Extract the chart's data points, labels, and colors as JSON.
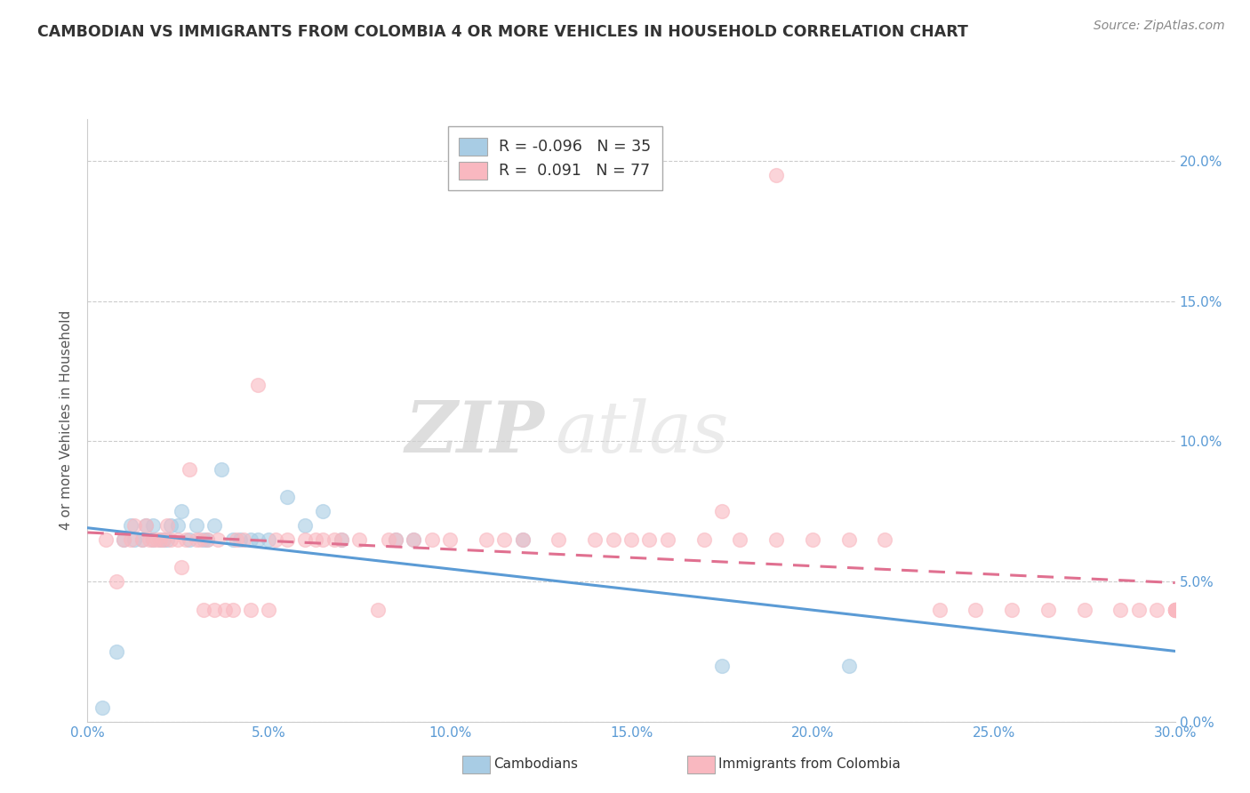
{
  "title": "CAMBODIAN VS IMMIGRANTS FROM COLOMBIA 4 OR MORE VEHICLES IN HOUSEHOLD CORRELATION CHART",
  "source": "Source: ZipAtlas.com",
  "ylabel": "4 or more Vehicles in Household",
  "legend_cambodian": "Cambodians",
  "legend_colombia": "Immigrants from Colombia",
  "r_cambodian": -0.096,
  "n_cambodian": 35,
  "r_colombia": 0.091,
  "n_colombia": 77,
  "xlim": [
    0.0,
    0.3
  ],
  "ylim": [
    0.0,
    0.215
  ],
  "xticks": [
    0.0,
    0.05,
    0.1,
    0.15,
    0.2,
    0.25,
    0.3
  ],
  "xtick_labels": [
    "0.0%",
    "5.0%",
    "10.0%",
    "15.0%",
    "20.0%",
    "25.0%",
    "30.0%"
  ],
  "yticks": [
    0.0,
    0.05,
    0.1,
    0.15,
    0.2
  ],
  "right_ytick_labels": [
    "0.0%",
    "5.0%",
    "10.0%",
    "15.0%",
    "20.0%"
  ],
  "color_cambodian": "#a8cce4",
  "color_colombia": "#f9b8c0",
  "trendline_color_cambodian": "#5b9bd5",
  "trendline_color_colombia": "#e07090",
  "watermark_zip": "ZIP",
  "watermark_atlas": "atlas",
  "cambodian_x": [
    0.004,
    0.008,
    0.01,
    0.012,
    0.013,
    0.015,
    0.016,
    0.018,
    0.018,
    0.02,
    0.021,
    0.022,
    0.023,
    0.025,
    0.026,
    0.028,
    0.03,
    0.032,
    0.033,
    0.035,
    0.037,
    0.04,
    0.042,
    0.045,
    0.047,
    0.05,
    0.055,
    0.06,
    0.065,
    0.07,
    0.085,
    0.09,
    0.12,
    0.175,
    0.21
  ],
  "cambodian_y": [
    0.005,
    0.025,
    0.065,
    0.07,
    0.065,
    0.065,
    0.07,
    0.065,
    0.07,
    0.065,
    0.065,
    0.065,
    0.07,
    0.07,
    0.075,
    0.065,
    0.07,
    0.065,
    0.065,
    0.07,
    0.09,
    0.065,
    0.065,
    0.065,
    0.065,
    0.065,
    0.08,
    0.07,
    0.075,
    0.065,
    0.065,
    0.065,
    0.065,
    0.02,
    0.02
  ],
  "colombia_x": [
    0.005,
    0.008,
    0.01,
    0.012,
    0.013,
    0.015,
    0.016,
    0.017,
    0.018,
    0.019,
    0.02,
    0.021,
    0.022,
    0.023,
    0.025,
    0.026,
    0.027,
    0.028,
    0.03,
    0.031,
    0.032,
    0.033,
    0.035,
    0.036,
    0.038,
    0.04,
    0.041,
    0.043,
    0.045,
    0.047,
    0.05,
    0.052,
    0.055,
    0.06,
    0.063,
    0.065,
    0.068,
    0.07,
    0.075,
    0.08,
    0.083,
    0.085,
    0.09,
    0.095,
    0.1,
    0.11,
    0.115,
    0.12,
    0.13,
    0.14,
    0.145,
    0.15,
    0.155,
    0.16,
    0.17,
    0.175,
    0.18,
    0.19,
    0.2,
    0.21,
    0.22,
    0.235,
    0.245,
    0.255,
    0.265,
    0.275,
    0.285,
    0.29,
    0.295,
    0.3,
    0.3,
    0.3,
    0.3,
    0.3,
    0.3,
    0.3,
    0.19
  ],
  "colombia_y": [
    0.065,
    0.05,
    0.065,
    0.065,
    0.07,
    0.065,
    0.07,
    0.065,
    0.065,
    0.065,
    0.065,
    0.065,
    0.07,
    0.065,
    0.065,
    0.055,
    0.065,
    0.09,
    0.065,
    0.065,
    0.04,
    0.065,
    0.04,
    0.065,
    0.04,
    0.04,
    0.065,
    0.065,
    0.04,
    0.12,
    0.04,
    0.065,
    0.065,
    0.065,
    0.065,
    0.065,
    0.065,
    0.065,
    0.065,
    0.04,
    0.065,
    0.065,
    0.065,
    0.065,
    0.065,
    0.065,
    0.065,
    0.065,
    0.065,
    0.065,
    0.065,
    0.065,
    0.065,
    0.065,
    0.065,
    0.075,
    0.065,
    0.065,
    0.065,
    0.065,
    0.065,
    0.04,
    0.04,
    0.04,
    0.04,
    0.04,
    0.04,
    0.04,
    0.04,
    0.04,
    0.04,
    0.04,
    0.04,
    0.04,
    0.04,
    0.04,
    0.195
  ]
}
